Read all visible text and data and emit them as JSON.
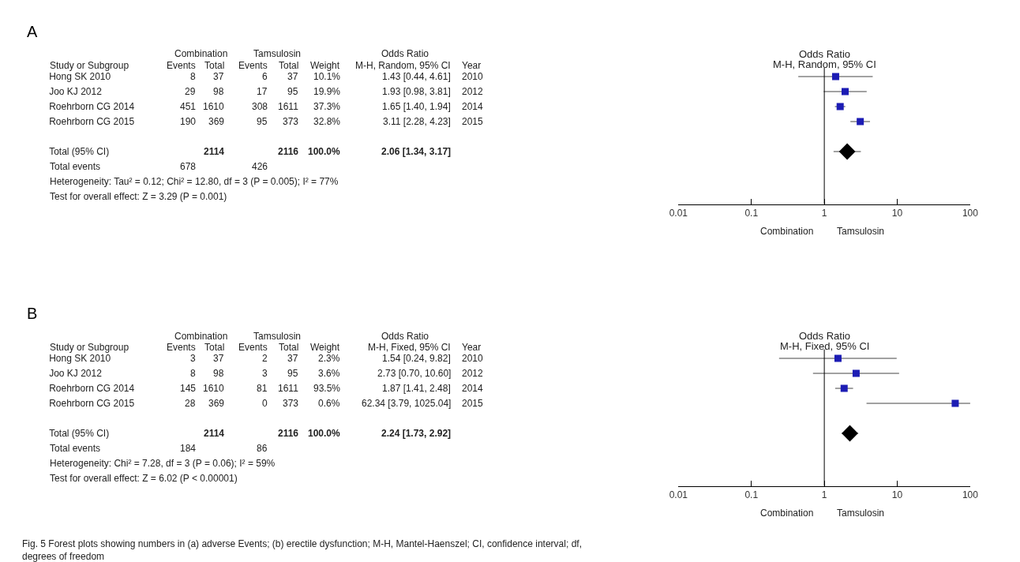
{
  "chart_data": [
    {
      "type": "scatter",
      "title": "Odds Ratio",
      "subtitle": "M-H, Random, 95% CI",
      "categories": [
        "Hong SK 2010",
        "Joo KJ 2012",
        "Roehrborn CG 2014",
        "Roehrborn CG 2015",
        null,
        "Total (95% CI)",
        null,
        null,
        null
      ],
      "series": [
        {
          "color": "#1c1cb4",
          "marker": "square",
          "values": [
            1.43,
            1.93,
            1.65,
            3.11,
            null,
            null,
            null,
            null,
            null
          ],
          "errors": [
            [
              0.44,
              4.61
            ],
            [
              0.98,
              3.81
            ],
            [
              1.4,
              1.94
            ],
            [
              2.28,
              4.23
            ],
            null,
            null,
            null,
            null,
            null
          ]
        },
        {
          "color": "#000000",
          "marker": "diamond",
          "values": [
            null,
            null,
            null,
            null,
            null,
            2.06,
            null,
            null,
            null
          ],
          "errors": [
            null,
            null,
            null,
            null,
            null,
            [
              1.34,
              3.17
            ],
            null,
            null,
            null
          ]
        }
      ],
      "orientation": "horizontal",
      "log": "x",
      "xlim": [
        0.01,
        100
      ],
      "xticks": [
        0.01,
        0.1,
        1,
        10,
        100
      ],
      "tick_labels": "x",
      "ref_lines": [
        {
          "axis": "x",
          "value": 1,
          "color": "#000000"
        }
      ],
      "annotations": [
        "Combination",
        "Tamsulosin",
        "Odds Ratio",
        "Study or Subgroup",
        "Events",
        "Total",
        "Events",
        "Total",
        "Weight",
        "M-H, Random, 95% CI",
        "Year",
        "8",
        "37",
        "6",
        "37",
        "10.1%",
        "1.43 [0.44, 4.61]",
        "2010",
        "29",
        "98",
        "17",
        "95",
        "19.9%",
        "1.93 [0.98, 3.81]",
        "2012",
        "451",
        "1610",
        "308",
        "1611",
        "37.3%",
        "1.65 [1.40, 1.94]",
        "2014",
        "190",
        "369",
        "95",
        "373",
        "32.8%",
        "3.11 [2.28, 4.23]",
        "2015",
        "2114",
        "2116",
        "100.0%",
        "2.06 [1.34, 3.17]",
        "Total events",
        "678",
        "426",
        "Heterogeneity: Tau² = 0.12; Chi² = 12.80, df = 3 (P = 0.005); I² = 77%",
        "Test for overall effect: Z = 3.29 (P = 0.001)",
        "Combination",
        "Tamsulosin",
        "A"
      ]
    },
    {
      "type": "scatter",
      "title": "Odds Ratio",
      "subtitle": "M-H, Fixed, 95% CI",
      "categories": [
        "Hong SK 2010",
        "Joo KJ 2012",
        "Roehrborn CG 2014",
        "Roehrborn CG 2015",
        null,
        "Total (95% CI)",
        null,
        null,
        null
      ],
      "series": [
        {
          "color": "#1c1cb4",
          "marker": "square",
          "values": [
            1.54,
            2.73,
            1.87,
            62.34,
            null,
            null,
            null,
            null,
            null
          ],
          "errors": [
            [
              0.24,
              9.82
            ],
            [
              0.7,
              10.6
            ],
            [
              1.41,
              2.48
            ],
            [
              3.79,
              1025.04
            ],
            null,
            null,
            null,
            null,
            null
          ]
        },
        {
          "color": "#000000",
          "marker": "diamond",
          "values": [
            null,
            null,
            null,
            null,
            null,
            2.24,
            null,
            null,
            null
          ],
          "errors": [
            null,
            null,
            null,
            null,
            null,
            [
              1.73,
              2.92
            ],
            null,
            null,
            null
          ]
        }
      ],
      "orientation": "horizontal",
      "log": "x",
      "xlim": [
        0.01,
        100
      ],
      "xticks": [
        0.01,
        0.1,
        1,
        10,
        100
      ],
      "tick_labels": "x",
      "ref_lines": [
        {
          "axis": "x",
          "value": 1,
          "color": "#000000"
        }
      ],
      "annotations": [
        "Combination",
        "Tamsulosin",
        "Odds Ratio",
        "Study or Subgroup",
        "Events",
        "Total",
        "Events",
        "Total",
        "Weight",
        "M-H, Fixed, 95% CI",
        "Year",
        "3",
        "37",
        "2",
        "37",
        "2.3%",
        "1.54 [0.24, 9.82]",
        "2010",
        "8",
        "98",
        "3",
        "95",
        "3.6%",
        "2.73 [0.70, 10.60]",
        "2012",
        "145",
        "1610",
        "81",
        "1611",
        "93.5%",
        "1.87 [1.41, 2.48]",
        "2014",
        "28",
        "369",
        "0",
        "373",
        "0.6%",
        "62.34 [3.79, 1025.04]",
        "2015",
        "2114",
        "2116",
        "100.0%",
        "2.24 [1.73, 2.92]",
        "Total events",
        "184",
        "86",
        "Heterogeneity: Chi² = 7.28, df = 3 (P = 0.06); I² = 59%",
        "Test for overall effect: Z = 6.02 (P < 0.00001)",
        "Combination",
        "Tamsulosin",
        "B",
        "Fig. 5 Forest plots showing numbers in (a) adverse Events; (b) erectile dysfunction; M-H, Mantel-Haenszel; CI, confidence interval; df, degrees of freedom"
      ]
    }
  ]
}
